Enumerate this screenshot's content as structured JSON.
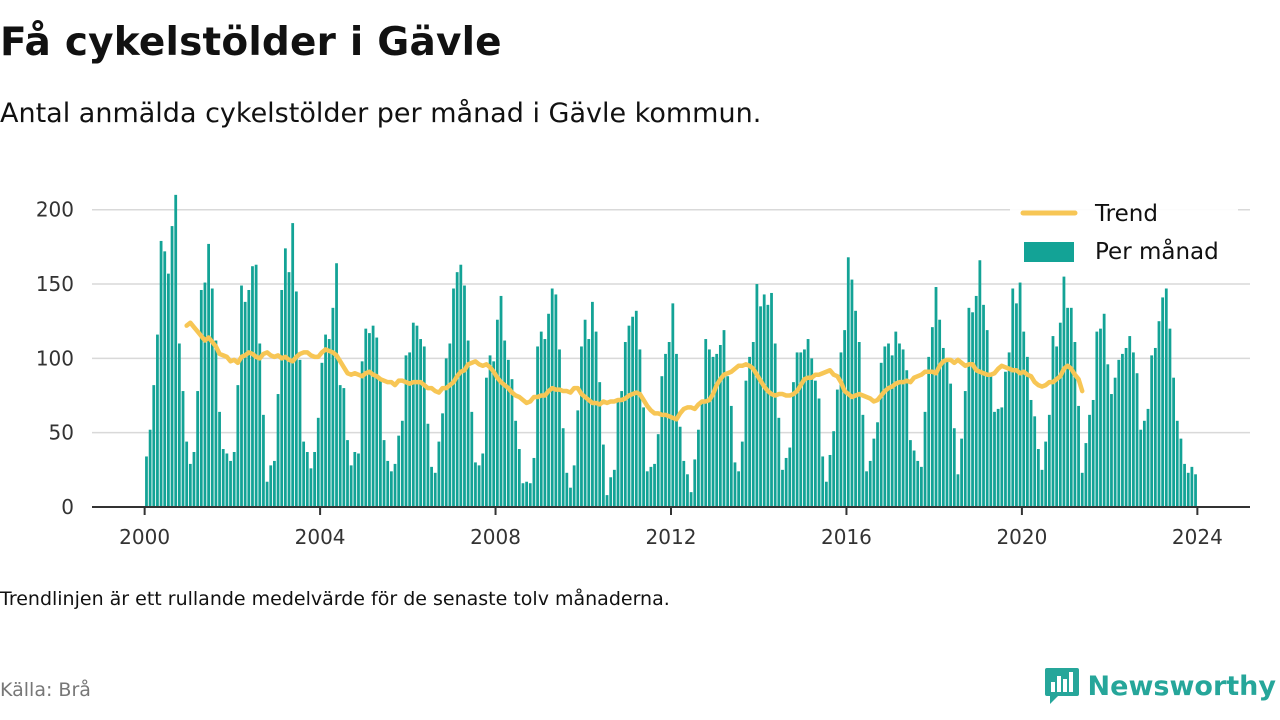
{
  "header": {
    "title": "Få cykelstölder i Gävle",
    "subtitle": "Antal anmälda cykelstölder per månad i Gävle kommun."
  },
  "footer": {
    "note": "Trendlinjen är ett rullande medelvärde för de senaste tolv månaderna.",
    "source": "Källa: Brå",
    "brand": "Newsworthy",
    "brand_icon": "newsworthy-bar-chart-icon"
  },
  "colors": {
    "bars": "#13a396",
    "trend": "#f7c655",
    "grid": "#d9d9d9",
    "axis": "#333333",
    "brand": "#26a69a"
  },
  "chart_data": {
    "type": "bar",
    "grid": true,
    "legend_position": "top-right",
    "ylim": [
      0,
      220
    ],
    "xlim": [
      1998.8,
      2025.2
    ],
    "y_ticks": [
      {
        "value": 0,
        "label": "0"
      },
      {
        "value": 50,
        "label": "50"
      },
      {
        "value": 100,
        "label": "100"
      },
      {
        "value": 150,
        "label": "150"
      },
      {
        "value": 200,
        "label": "200"
      }
    ],
    "x_ticks": [
      {
        "value": 2000,
        "label": "2000"
      },
      {
        "value": 2004,
        "label": "2004"
      },
      {
        "value": 2008,
        "label": "2008"
      },
      {
        "value": 2012,
        "label": "2012"
      },
      {
        "value": 2016,
        "label": "2016"
      },
      {
        "value": 2020,
        "label": "2020"
      },
      {
        "value": 2024,
        "label": "2024"
      }
    ],
    "start": "2000-01",
    "series": [
      {
        "name": "Per månad",
        "kind": "bar",
        "values": [
          34,
          52,
          82,
          116,
          179,
          172,
          157,
          189,
          210,
          110,
          78,
          44,
          29,
          37,
          78,
          146,
          151,
          177,
          147,
          112,
          64,
          39,
          36,
          31,
          37,
          82,
          149,
          138,
          146,
          162,
          163,
          110,
          62,
          17,
          28,
          31,
          76,
          146,
          174,
          158,
          191,
          145,
          99,
          44,
          37,
          26,
          37,
          60,
          97,
          116,
          113,
          134,
          164,
          82,
          80,
          45,
          28,
          37,
          36,
          98,
          120,
          117,
          122,
          114,
          87,
          45,
          31,
          24,
          29,
          48,
          58,
          102,
          104,
          124,
          122,
          113,
          108,
          56,
          27,
          23,
          44,
          63,
          100,
          110,
          147,
          158,
          163,
          149,
          112,
          64,
          30,
          28,
          36,
          87,
          102,
          98,
          126,
          142,
          112,
          99,
          86,
          58,
          39,
          16,
          17,
          16,
          33,
          108,
          118,
          113,
          130,
          147,
          143,
          106,
          53,
          23,
          13,
          28,
          65,
          108,
          126,
          113,
          138,
          118,
          84,
          42,
          8,
          20,
          25,
          72,
          78,
          111,
          122,
          128,
          132,
          106,
          67,
          24,
          27,
          29,
          49,
          88,
          103,
          111,
          137,
          103,
          54,
          31,
          22,
          10,
          32,
          52,
          72,
          113,
          106,
          101,
          103,
          109,
          119,
          88,
          68,
          30,
          24,
          44,
          85,
          101,
          111,
          150,
          135,
          143,
          136,
          144,
          110,
          60,
          25,
          33,
          40,
          84,
          104,
          104,
          106,
          113,
          100,
          85,
          73,
          34,
          17,
          35,
          51,
          79,
          104,
          119,
          168,
          153,
          132,
          111,
          62,
          24,
          31,
          46,
          57,
          97,
          108,
          110,
          102,
          118,
          110,
          106,
          92,
          45,
          38,
          31,
          27,
          64,
          101,
          121,
          148,
          126,
          107,
          99,
          83,
          53,
          22,
          46,
          78,
          134,
          131,
          142,
          166,
          136,
          119,
          89,
          64,
          66,
          67,
          91,
          104,
          147,
          137,
          151,
          118,
          101,
          72,
          61,
          39,
          25,
          44,
          62,
          115,
          108,
          124,
          155,
          134,
          134,
          111,
          68,
          23,
          43,
          62,
          72,
          118,
          120,
          130,
          96,
          76,
          87,
          99,
          103,
          107,
          115,
          104,
          90,
          52,
          58,
          66,
          102,
          107,
          125,
          141,
          147,
          120,
          87,
          58,
          46,
          29,
          23,
          27,
          22
        ]
      },
      {
        "name": "Trend",
        "kind": "line",
        "start": "2000-12",
        "values": [
          122,
          124,
          121,
          118,
          115,
          112,
          114,
          111,
          108,
          103,
          102,
          101,
          98,
          99,
          97,
          101,
          102,
          104,
          103,
          101,
          100,
          103,
          104,
          102,
          101,
          102,
          100,
          101,
          99,
          98,
          101,
          103,
          104,
          104,
          102,
          101,
          101,
          104,
          106,
          105,
          104,
          102,
          98,
          94,
          90,
          89,
          90,
          89,
          88,
          90,
          91,
          89,
          88,
          86,
          85,
          84,
          84,
          82,
          85,
          85,
          84,
          83,
          84,
          84,
          84,
          82,
          80,
          80,
          78,
          77,
          80,
          80,
          82,
          84,
          88,
          91,
          92,
          96,
          97,
          98,
          96,
          95,
          96,
          94,
          91,
          87,
          84,
          82,
          80,
          77,
          75,
          74,
          72,
          70,
          71,
          74,
          74,
          75,
          75,
          78,
          80,
          79,
          79,
          78,
          78,
          77,
          80,
          80,
          76,
          74,
          72,
          70,
          70,
          69,
          71,
          70,
          71,
          71,
          72,
          72,
          73,
          75,
          76,
          77,
          76,
          72,
          68,
          65,
          63,
          63,
          62,
          62,
          61,
          60,
          59,
          63,
          66,
          67,
          67,
          66,
          69,
          71,
          71,
          72,
          76,
          82,
          86,
          89,
          90,
          91,
          93,
          95,
          95,
          96,
          95,
          93,
          89,
          85,
          81,
          78,
          76,
          75,
          76,
          76,
          75,
          75,
          76,
          78,
          82,
          86,
          87,
          87,
          89,
          89,
          90,
          91,
          92,
          89,
          88,
          84,
          78,
          76,
          74,
          75,
          76,
          75,
          74,
          73,
          71,
          72,
          75,
          78,
          80,
          81,
          83,
          84,
          84,
          85,
          84,
          87,
          88,
          89,
          91,
          91,
          91,
          90,
          95,
          98,
          99,
          99,
          97,
          99,
          97,
          95,
          96,
          96,
          92,
          91,
          90,
          89,
          89,
          90,
          93,
          95,
          94,
          93,
          92,
          92,
          90,
          91,
          89,
          88,
          84,
          82,
          81,
          82,
          84,
          84,
          86,
          88,
          93,
          95,
          93,
          89,
          86,
          78
        ]
      }
    ]
  }
}
